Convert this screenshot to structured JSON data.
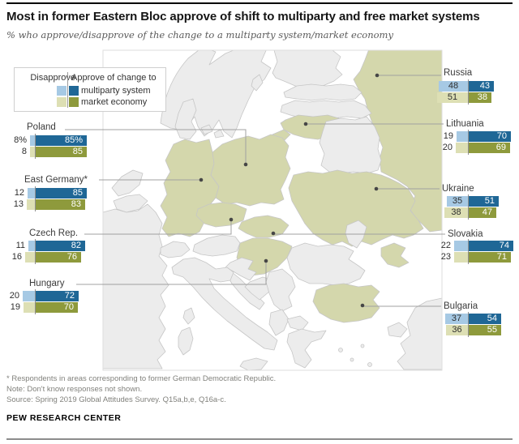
{
  "title": "Most in former Eastern Bloc approve of shift to multiparty and free market systems",
  "subtitle": "% who approve/disapprove of the change to a multiparty system/market economy",
  "legend": {
    "disapprove_label": "Disapprove",
    "approve_label": "Approve of change to",
    "items": [
      {
        "label": "multiparty system"
      },
      {
        "label": "market economy"
      }
    ]
  },
  "colors": {
    "approve_multiparty": "#1f6796",
    "disapprove_multiparty": "#a6c9e4",
    "approve_market": "#8e9a3c",
    "disapprove_market": "#dddfb4",
    "map_highlight": "#d4d7ac",
    "map_neutral": "#ececec",
    "map_border": "#c6c6c6",
    "leader_line": "#a0a0a0",
    "leader_dot": "#464646"
  },
  "countries": [
    {
      "id": "poland",
      "name": "Poland",
      "rows": [
        {
          "metric": "multiparty system",
          "disapprove": 8,
          "approve": 85,
          "disapprove_label": "8%",
          "approve_label": "85%"
        },
        {
          "metric": "market economy",
          "disapprove": 8,
          "approve": 85,
          "disapprove_label": "8",
          "approve_label": "85"
        }
      ]
    },
    {
      "id": "east_germany",
      "name": "East Germany*",
      "rows": [
        {
          "metric": "multiparty system",
          "disapprove": 12,
          "approve": 85,
          "disapprove_label": "12",
          "approve_label": "85"
        },
        {
          "metric": "market economy",
          "disapprove": 13,
          "approve": 83,
          "disapprove_label": "13",
          "approve_label": "83"
        }
      ]
    },
    {
      "id": "czech_rep",
      "name": "Czech Rep.",
      "rows": [
        {
          "metric": "multiparty system",
          "disapprove": 11,
          "approve": 82,
          "disapprove_label": "11",
          "approve_label": "82"
        },
        {
          "metric": "market economy",
          "disapprove": 16,
          "approve": 76,
          "disapprove_label": "16",
          "approve_label": "76"
        }
      ]
    },
    {
      "id": "hungary",
      "name": "Hungary",
      "rows": [
        {
          "metric": "multiparty system",
          "disapprove": 20,
          "approve": 72,
          "disapprove_label": "20",
          "approve_label": "72"
        },
        {
          "metric": "market economy",
          "disapprove": 19,
          "approve": 70,
          "disapprove_label": "19",
          "approve_label": "70"
        }
      ]
    },
    {
      "id": "russia",
      "name": "Russia",
      "rows": [
        {
          "metric": "multiparty system",
          "disapprove": 48,
          "approve": 43,
          "disapprove_label": "48",
          "approve_label": "43"
        },
        {
          "metric": "market economy",
          "disapprove": 51,
          "approve": 38,
          "disapprove_label": "51",
          "approve_label": "38"
        }
      ]
    },
    {
      "id": "lithuania",
      "name": "Lithuania",
      "rows": [
        {
          "metric": "multiparty system",
          "disapprove": 19,
          "approve": 70,
          "disapprove_label": "19",
          "approve_label": "70"
        },
        {
          "metric": "market economy",
          "disapprove": 20,
          "approve": 69,
          "disapprove_label": "20",
          "approve_label": "69"
        }
      ]
    },
    {
      "id": "ukraine",
      "name": "Ukraine",
      "rows": [
        {
          "metric": "multiparty system",
          "disapprove": 35,
          "approve": 51,
          "disapprove_label": "35",
          "approve_label": "51"
        },
        {
          "metric": "market economy",
          "disapprove": 38,
          "approve": 47,
          "disapprove_label": "38",
          "approve_label": "47"
        }
      ]
    },
    {
      "id": "slovakia",
      "name": "Slovakia",
      "rows": [
        {
          "metric": "multiparty system",
          "disapprove": 22,
          "approve": 74,
          "disapprove_label": "22",
          "approve_label": "74"
        },
        {
          "metric": "market economy",
          "disapprove": 23,
          "approve": 71,
          "disapprove_label": "23",
          "approve_label": "71"
        }
      ]
    },
    {
      "id": "bulgaria",
      "name": "Bulgaria",
      "rows": [
        {
          "metric": "multiparty system",
          "disapprove": 37,
          "approve": 54,
          "disapprove_label": "37",
          "approve_label": "54"
        },
        {
          "metric": "market economy",
          "disapprove": 36,
          "approve": 55,
          "disapprove_label": "36",
          "approve_label": "55"
        }
      ]
    }
  ],
  "chart_data": {
    "type": "bar",
    "title": "Most in former Eastern Bloc approve of shift to multiparty and free market systems",
    "subtitle": "% who approve/disapprove of the change to a multiparty system/market economy",
    "categories": [
      "Poland",
      "East Germany*",
      "Czech Rep.",
      "Hungary",
      "Russia",
      "Lithuania",
      "Ukraine",
      "Slovakia",
      "Bulgaria"
    ],
    "series": [
      {
        "name": "Disapprove of change to multiparty system",
        "values": [
          8,
          12,
          11,
          20,
          48,
          19,
          35,
          22,
          37
        ]
      },
      {
        "name": "Approve of change to multiparty system",
        "values": [
          85,
          85,
          82,
          72,
          43,
          70,
          51,
          74,
          54
        ]
      },
      {
        "name": "Disapprove of change to market economy",
        "values": [
          8,
          13,
          16,
          19,
          51,
          20,
          38,
          23,
          36
        ]
      },
      {
        "name": "Approve of change to market economy",
        "values": [
          85,
          83,
          76,
          70,
          38,
          69,
          47,
          71,
          55
        ]
      }
    ],
    "unit": "%",
    "legend_position": "top-left",
    "layout": "paired horizontal bars anchored on map of Europe, surveyed countries shaded"
  },
  "notes": [
    "* Respondents in areas corresponding to former German Democratic Republic.",
    "Note: Don't know responses not shown.",
    "Source: Spring 2019 Global Attitudes Survey. Q15a,b,e, Q16a-c."
  ],
  "brand": "PEW RESEARCH CENTER"
}
